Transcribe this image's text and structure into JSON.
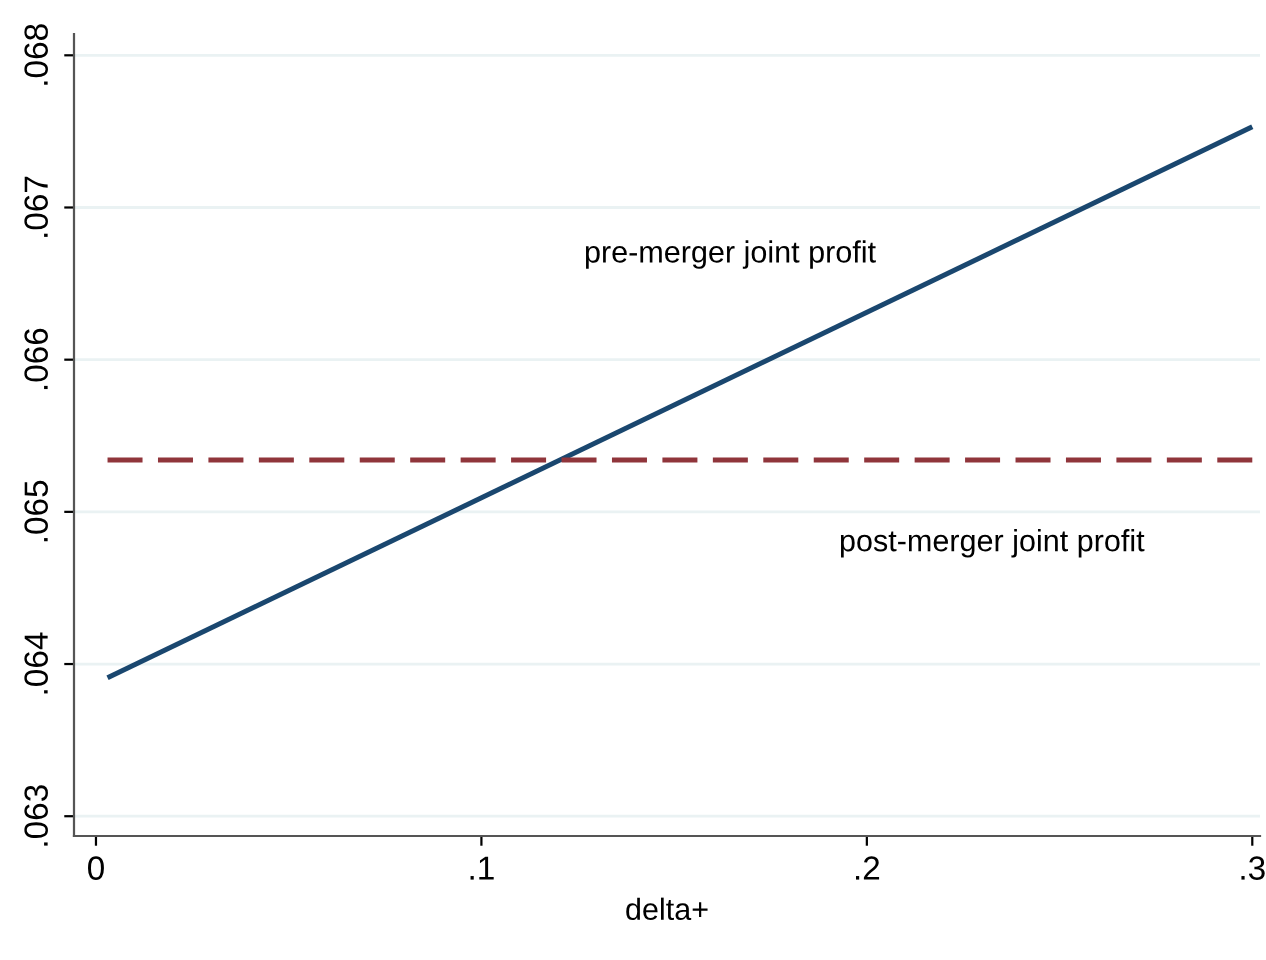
{
  "chart_data": {
    "type": "line",
    "xlabel": "delta+",
    "x": [
      0.003,
      0.3
    ],
    "series": [
      {
        "name": "pre-merger joint profit",
        "color": "#1a476f",
        "values": [
          0.06391,
          0.06753
        ],
        "line_style": "solid"
      },
      {
        "name": "post-merger joint profit",
        "color": "#90353b",
        "values": [
          0.06534,
          0.06534
        ],
        "line_style": "dashed"
      }
    ],
    "xlim": [
      -0.0057,
      0.302
    ],
    "xticks": [
      0,
      {
        "value": 0.1,
        "label": ".1"
      },
      {
        "value": 0.2,
        "label": ".2"
      },
      {
        "value": 0.3,
        "label": ".3"
      }
    ],
    "ylim": [
      0.06287,
      0.06814
    ],
    "yticks": [
      {
        "value": 0.063,
        "label": ".063"
      },
      {
        "value": 0.064,
        "label": ".064"
      },
      {
        "value": 0.065,
        "label": ".065"
      },
      {
        "value": 0.066,
        "label": ".066"
      },
      {
        "value": 0.067,
        "label": ".067"
      },
      {
        "value": 0.068,
        "label": ".068"
      }
    ],
    "grid": "y",
    "legend": false
  }
}
